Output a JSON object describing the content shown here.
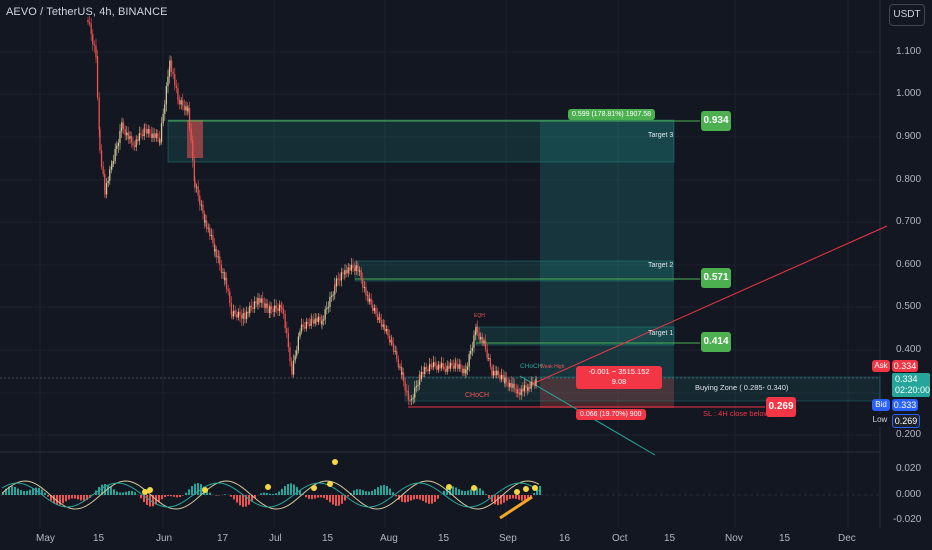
{
  "header": {
    "symbol": "AEVO / TetherUS, 4h, BINANCE",
    "currency_button": "USDT"
  },
  "y_axis": {
    "ticks": [
      "1.100",
      "1.000",
      "0.900",
      "0.800",
      "0.700",
      "0.600",
      "0.500",
      "0.400",
      "0.300",
      "0.200"
    ],
    "indicator_ticks": [
      "0.020",
      "0.000",
      "-0.020"
    ]
  },
  "x_axis": {
    "ticks": [
      "May",
      "15",
      "Jun",
      "17",
      "Jul",
      "15",
      "Aug",
      "15",
      "Sep",
      "16",
      "Oct",
      "15",
      "Nov",
      "15",
      "Dec"
    ]
  },
  "targets": [
    {
      "name": "Target 3",
      "price": "0.934",
      "stat": "0.599 (178.81%) 1907.58"
    },
    {
      "name": "Target 2",
      "price": "0.571"
    },
    {
      "name": "Target 1",
      "price": "0.414"
    }
  ],
  "zone": {
    "label": "Buying Zone ( 0.285- 0.340)"
  },
  "stop": {
    "label": "SL : 4H close below",
    "price": "0.269",
    "stat": "0.066 (19.70%) 900"
  },
  "position_stat": {
    "line1": "-0.001 − 3515.152",
    "line2": "9.08"
  },
  "annotations": {
    "choch": "CHoCH",
    "choch2": "CHoCH",
    "eqh": "EQH",
    "weak_high": "Weak High"
  },
  "quote": {
    "ask_label": "Ask",
    "ask": "0.334",
    "last": "0.334",
    "countdown": "02:20:00",
    "bid_label": "Bid",
    "bid": "0.333",
    "low_label": "Low",
    "low": "0.269"
  },
  "colors": {
    "bg": "#131722",
    "up": "#26a69a",
    "down": "#ef5350",
    "candle_up": "#d4c89a",
    "target": "#4caf50",
    "stop": "#f23645",
    "zone": "#26a69a"
  }
}
